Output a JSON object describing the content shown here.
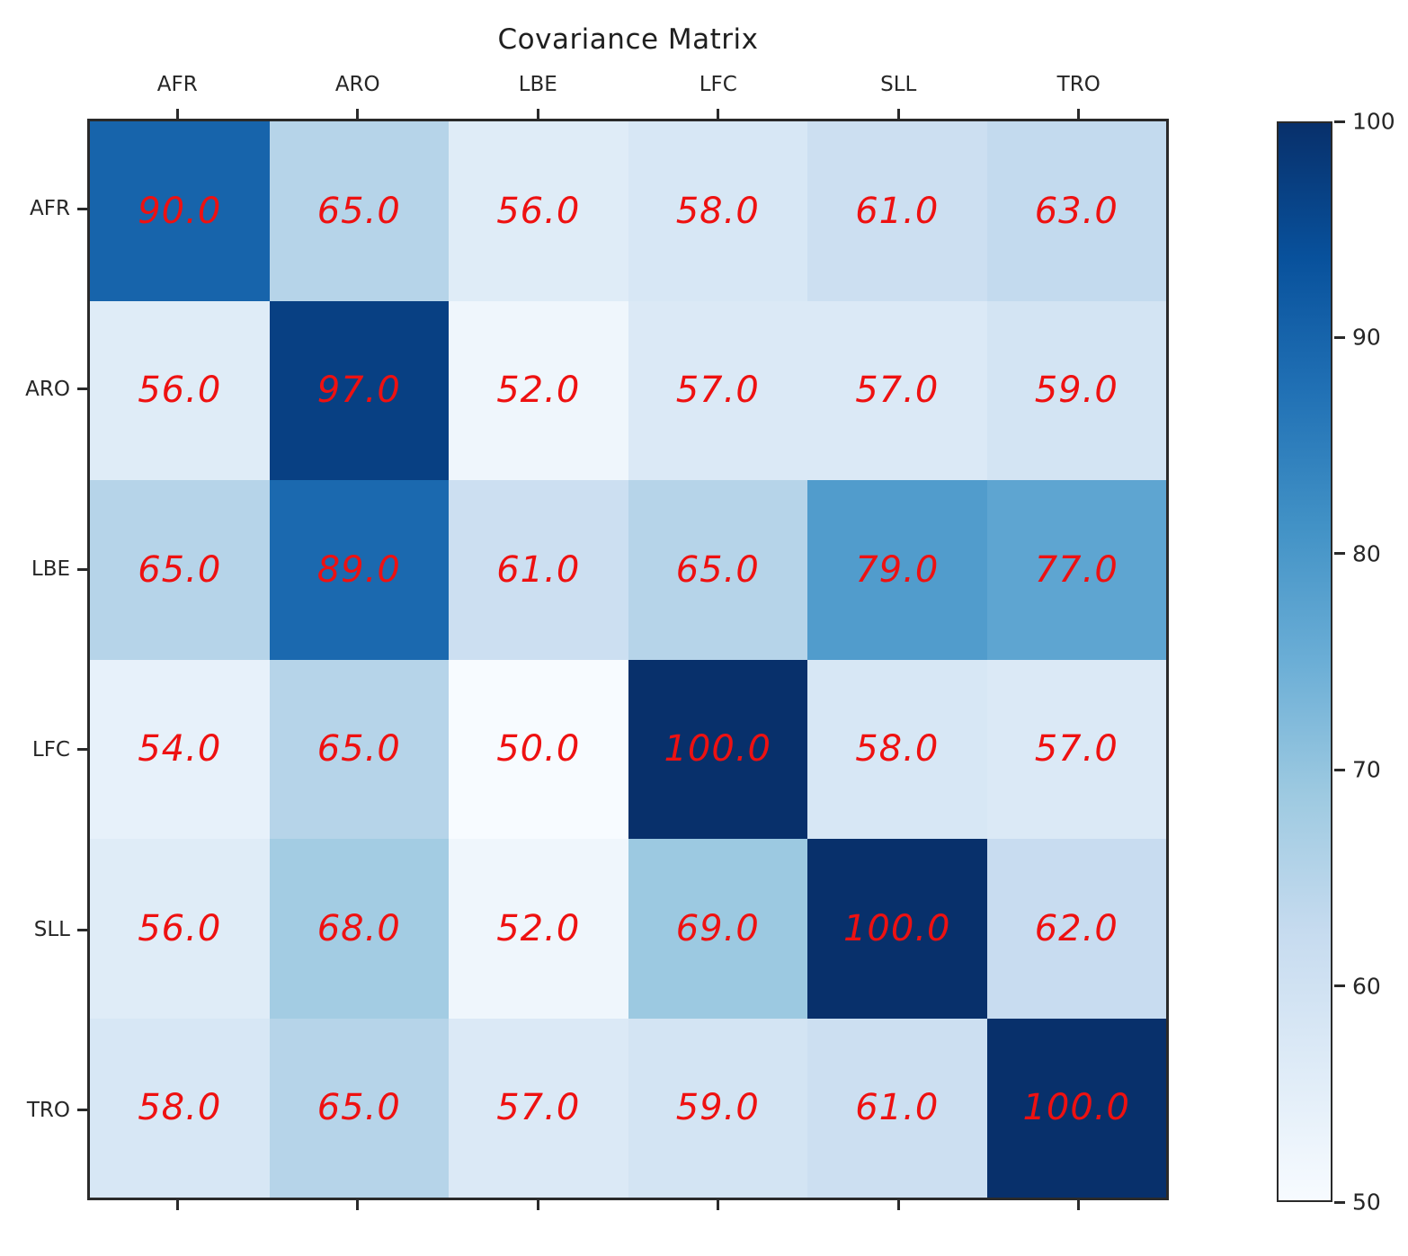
{
  "chart_data": {
    "type": "heatmap",
    "title": "Covariance Matrix",
    "x_labels": [
      "AFR",
      "ARO",
      "LBE",
      "LFC",
      "SLL",
      "TRO"
    ],
    "y_labels": [
      "AFR",
      "ARO",
      "LBE",
      "LFC",
      "SLL",
      "TRO"
    ],
    "matrix": [
      [
        90.0,
        65.0,
        56.0,
        58.0,
        61.0,
        63.0
      ],
      [
        56.0,
        97.0,
        52.0,
        57.0,
        57.0,
        59.0
      ],
      [
        65.0,
        89.0,
        61.0,
        65.0,
        79.0,
        77.0
      ],
      [
        54.0,
        65.0,
        50.0,
        100.0,
        58.0,
        57.0
      ],
      [
        56.0,
        68.0,
        52.0,
        69.0,
        100.0,
        62.0
      ],
      [
        58.0,
        65.0,
        57.0,
        59.0,
        61.0,
        100.0
      ]
    ],
    "value_decimals": 1,
    "annotation_color": "#ee1111",
    "annotation_italic": true,
    "colormap": {
      "name": "Blues",
      "anchors": [
        "#f7fbff",
        "#deebf7",
        "#c6dbef",
        "#9ecae1",
        "#6baed6",
        "#4292c6",
        "#2171b5",
        "#08519c",
        "#08306b"
      ]
    },
    "vmin": 50,
    "vmax": 100,
    "colorbar": {
      "position": "right",
      "ticks": [
        100,
        90,
        80,
        70,
        60,
        50
      ]
    },
    "grid": false,
    "legend": "none",
    "x_axis_label_position": "top",
    "tick_color": "#2a2a2a"
  }
}
